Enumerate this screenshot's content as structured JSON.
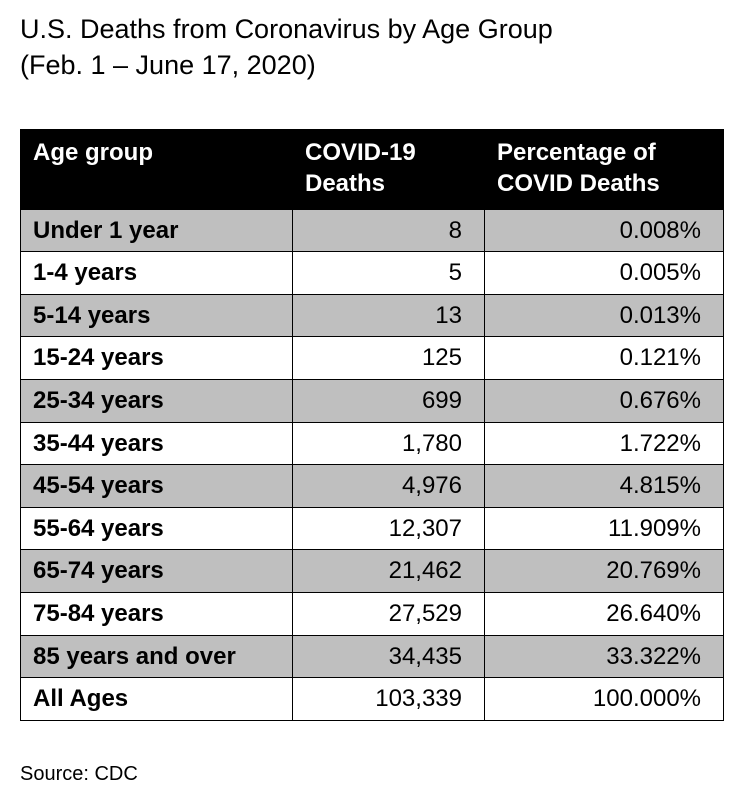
{
  "colors": {
    "header_bg": "#000000",
    "header_text": "#ffffff",
    "row_shade": "#bfbfbf",
    "grid_line": "#000000"
  },
  "title": {
    "line1": "U.S. Deaths from Coronavirus by Age Group",
    "line2": "(Feb. 1 – June 17, 2020)"
  },
  "source": "Source: CDC",
  "chart_data": {
    "type": "table",
    "title": "U.S. Deaths from Coronavirus by Age Group (Feb. 1 – June 17, 2020)",
    "columns": [
      "Age group",
      "COVID-19 Deaths",
      "Percentage of COVID Deaths"
    ],
    "rows": [
      {
        "age_group": "Under 1 year",
        "deaths": "8",
        "pct": "0.008%"
      },
      {
        "age_group": "1-4 years",
        "deaths": "5",
        "pct": "0.005%"
      },
      {
        "age_group": "5-14 years",
        "deaths": "13",
        "pct": "0.013%"
      },
      {
        "age_group": "15-24 years",
        "deaths": "125",
        "pct": "0.121%"
      },
      {
        "age_group": "25-34 years",
        "deaths": "699",
        "pct": "0.676%"
      },
      {
        "age_group": "35-44 years",
        "deaths": "1,780",
        "pct": "1.722%"
      },
      {
        "age_group": "45-54 years",
        "deaths": "4,976",
        "pct": "4.815%"
      },
      {
        "age_group": "55-64 years",
        "deaths": "12,307",
        "pct": "11.909%"
      },
      {
        "age_group": "65-74 years",
        "deaths": "21,462",
        "pct": "20.769%"
      },
      {
        "age_group": "75-84 years",
        "deaths": "27,529",
        "pct": "26.640%"
      },
      {
        "age_group": "85 years and over",
        "deaths": "34,435",
        "pct": "33.322%"
      },
      {
        "age_group": "All Ages",
        "deaths": "103,339",
        "pct": "100.000%"
      }
    ],
    "source": "CDC"
  }
}
